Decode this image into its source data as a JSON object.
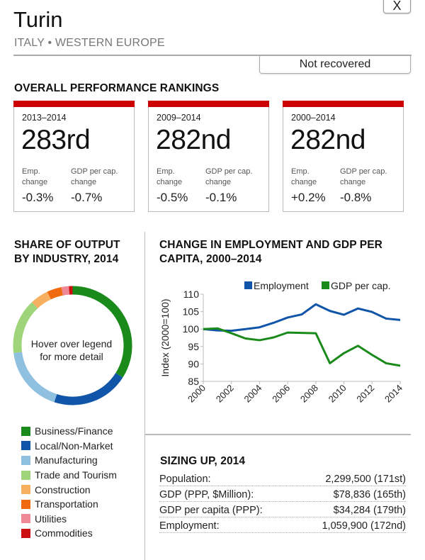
{
  "header": {
    "close_label": "X",
    "title": "Turin",
    "region": "ITALY • WESTERN EUROPE",
    "status": "Not recovered"
  },
  "rankings": {
    "title": "OVERALL PERFORMANCE RANKINGS",
    "accent_color": "#cc0000",
    "emp_label_1": "Emp.",
    "emp_label_2": "change",
    "gdp_label_1": "GDP per cap.",
    "gdp_label_2": "change",
    "cards": [
      {
        "period": "2013–2014",
        "rank": "283rd",
        "emp_change": "-0.3%",
        "gdp_change": "-0.7%"
      },
      {
        "period": "2009–2014",
        "rank": "282nd",
        "emp_change": "-0.5%",
        "gdp_change": "-0.1%"
      },
      {
        "period": "2000–2014",
        "rank": "282nd",
        "emp_change": "+0.2%",
        "gdp_change": "-0.8%"
      }
    ]
  },
  "share": {
    "title_1": "SHARE OF OUTPUT",
    "title_2": "BY INDUSTRY, 2014",
    "center_1": "Hover over legend",
    "center_2": "for more detail"
  },
  "trend": {
    "title_1": "CHANGE IN EMPLOYMENT AND GDP PER",
    "title_2": "CAPITA, 2000–2014"
  },
  "sizing": {
    "title": "SIZING UP, 2014",
    "rows": [
      {
        "label": "Population:",
        "value": "2,299,500 (171st)"
      },
      {
        "label": "GDP (PPP, $Million):",
        "value": "$78,836 (165th)"
      },
      {
        "label": "GDP per capita (PPP):",
        "value": "$34,284 (179th)"
      },
      {
        "label": "Employment:",
        "value": "1,059,900 (172nd)"
      }
    ]
  },
  "chart_data": [
    {
      "type": "pie",
      "title": "SHARE OF OUTPUT BY INDUSTRY, 2014",
      "donut": true,
      "legend_position": "bottom",
      "categories": [
        "Business/Finance",
        "Local/Non-Market",
        "Manufacturing",
        "Trade and Tourism",
        "Construction",
        "Transportation",
        "Utilities",
        "Commodities"
      ],
      "values": [
        34,
        21,
        18,
        15,
        5,
        4,
        2,
        1
      ],
      "colors": [
        "#1a8a1a",
        "#1055a8",
        "#8fc0e0",
        "#9fd47a",
        "#f7b060",
        "#f06a10",
        "#f08898",
        "#cc1010"
      ]
    },
    {
      "type": "line",
      "title": "CHANGE IN EMPLOYMENT AND GDP PER CAPITA, 2000–2014",
      "xlabel": "",
      "ylabel": "Index (2000=100)",
      "ylim": [
        85,
        110
      ],
      "yticks": [
        85,
        90,
        95,
        100,
        105,
        110
      ],
      "xlim": [
        2000,
        2014
      ],
      "xticks": [
        2000,
        2002,
        2004,
        2006,
        2008,
        2010,
        2012,
        2014
      ],
      "grid": false,
      "legend_position": "top-right",
      "x": [
        2000,
        2001,
        2002,
        2003,
        2004,
        2005,
        2006,
        2007,
        2008,
        2009,
        2010,
        2011,
        2012,
        2013,
        2014
      ],
      "series": [
        {
          "name": "Employment",
          "color": "#1055a8",
          "values": [
            100,
            99.6,
            99.5,
            100.0,
            100.5,
            101.8,
            103.3,
            104.2,
            107.1,
            105.2,
            104.1,
            105.9,
            104.9,
            103.0,
            102.6
          ]
        },
        {
          "name": "GDP per cap.",
          "color": "#1a8a1a",
          "values": [
            100,
            100.2,
            98.8,
            97.3,
            96.8,
            97.6,
            99.0,
            98.9,
            98.8,
            90.2,
            93.1,
            95.2,
            92.6,
            90.2,
            89.5
          ]
        }
      ]
    }
  ]
}
